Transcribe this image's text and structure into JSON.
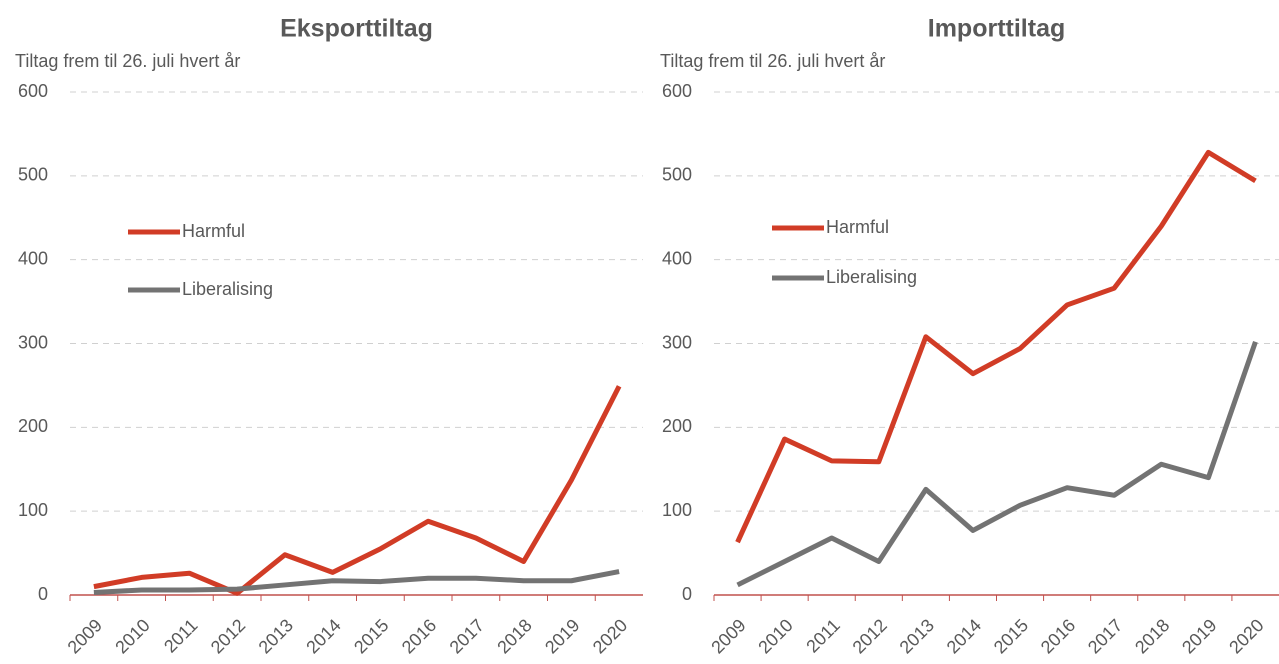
{
  "chart_data": [
    {
      "type": "line",
      "title": "Eksporttiltag",
      "subtitle": "Tiltag frem til 26. juli hvert år",
      "categories": [
        "2009",
        "2010",
        "2011",
        "2012",
        "2013",
        "2014",
        "2015",
        "2016",
        "2017",
        "2018",
        "2019",
        "2020"
      ],
      "series": [
        {
          "name": "Harmful",
          "color": "#d13c26",
          "values": [
            10,
            21,
            26,
            2,
            48,
            27,
            55,
            88,
            68,
            40,
            137,
            249
          ]
        },
        {
          "name": "Liberalising",
          "color": "#737373",
          "values": [
            3,
            6,
            6,
            7,
            12,
            17,
            16,
            20,
            20,
            17,
            17,
            28
          ]
        }
      ],
      "ylim": [
        0,
        600
      ],
      "yticks": [
        0,
        100,
        200,
        300,
        400,
        500,
        600
      ],
      "grid": true,
      "legend": "left"
    },
    {
      "type": "line",
      "title": "Importtiltag",
      "subtitle": "Tiltag frem til 26. juli hvert år",
      "categories": [
        "2009",
        "2010",
        "2011",
        "2012",
        "2013",
        "2014",
        "2015",
        "2016",
        "2017",
        "2018",
        "2019",
        "2020"
      ],
      "series": [
        {
          "name": "Harmful",
          "color": "#d13c26",
          "values": [
            63,
            186,
            160,
            159,
            308,
            264,
            294,
            346,
            366,
            440,
            528,
            494
          ]
        },
        {
          "name": "Liberalising",
          "color": "#737373",
          "values": [
            12,
            40,
            68,
            40,
            126,
            77,
            107,
            128,
            119,
            156,
            140,
            302
          ]
        }
      ],
      "ylim": [
        0,
        600
      ],
      "yticks": [
        0,
        100,
        200,
        300,
        400,
        500,
        600
      ],
      "grid": true,
      "legend": "left"
    }
  ]
}
